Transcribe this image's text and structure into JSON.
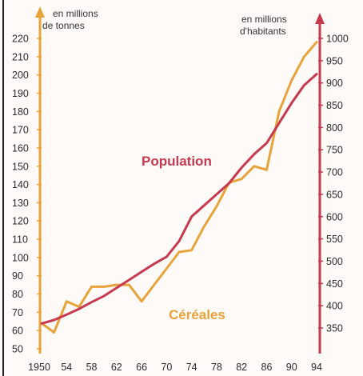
{
  "chart_data": {
    "type": "line",
    "title": "",
    "left_axis": {
      "unit_line1": "en millions",
      "unit_line2": "de tonnes",
      "ticks": [
        50,
        60,
        70,
        80,
        90,
        100,
        110,
        120,
        130,
        140,
        150,
        160,
        170,
        180,
        190,
        200,
        210,
        220
      ],
      "ylim": [
        50,
        225
      ],
      "color": "#e8a33a"
    },
    "right_axis": {
      "unit_line1": "en millions",
      "unit_line2": "d'habitants",
      "ticks": [
        350,
        400,
        450,
        500,
        550,
        600,
        650,
        700,
        750,
        800,
        850,
        900,
        950,
        1000
      ],
      "ylim": [
        280,
        1030
      ],
      "color": "#c6394f"
    },
    "x_axis": {
      "tick_labels": [
        "1950",
        "54",
        "58",
        "62",
        "66",
        "70",
        "74",
        "78",
        "82",
        "86",
        "90",
        "94"
      ],
      "tick_values": [
        1950,
        1954,
        1958,
        1962,
        1966,
        1970,
        1974,
        1978,
        1982,
        1986,
        1990,
        1994
      ],
      "xlim": [
        1950,
        1994
      ]
    },
    "series": [
      {
        "name": "Céréales",
        "axis": "left",
        "color": "#e8a33a",
        "x": [
          1950,
          1952,
          1954,
          1956,
          1958,
          1960,
          1962,
          1964,
          1966,
          1968,
          1970,
          1972,
          1974,
          1976,
          1978,
          1980,
          1982,
          1984,
          1986,
          1988,
          1990,
          1992,
          1994
        ],
        "y": [
          64,
          59,
          76,
          73,
          84,
          84,
          85,
          85,
          76,
          85,
          94,
          103,
          104,
          117,
          128,
          141,
          143,
          150,
          148,
          180,
          197,
          210,
          218
        ]
      },
      {
        "name": "Population",
        "axis": "right",
        "color": "#c6394f",
        "x": [
          1950,
          1952,
          1954,
          1956,
          1958,
          1960,
          1962,
          1964,
          1966,
          1968,
          1970,
          1972,
          1974,
          1976,
          1978,
          1980,
          1982,
          1984,
          1986,
          1988,
          1990,
          1992,
          1994
        ],
        "y": [
          360,
          368,
          380,
          393,
          408,
          422,
          440,
          458,
          476,
          494,
          510,
          545,
          600,
          625,
          650,
          675,
          710,
          740,
          765,
          810,
          855,
          895,
          920
        ]
      }
    ]
  }
}
